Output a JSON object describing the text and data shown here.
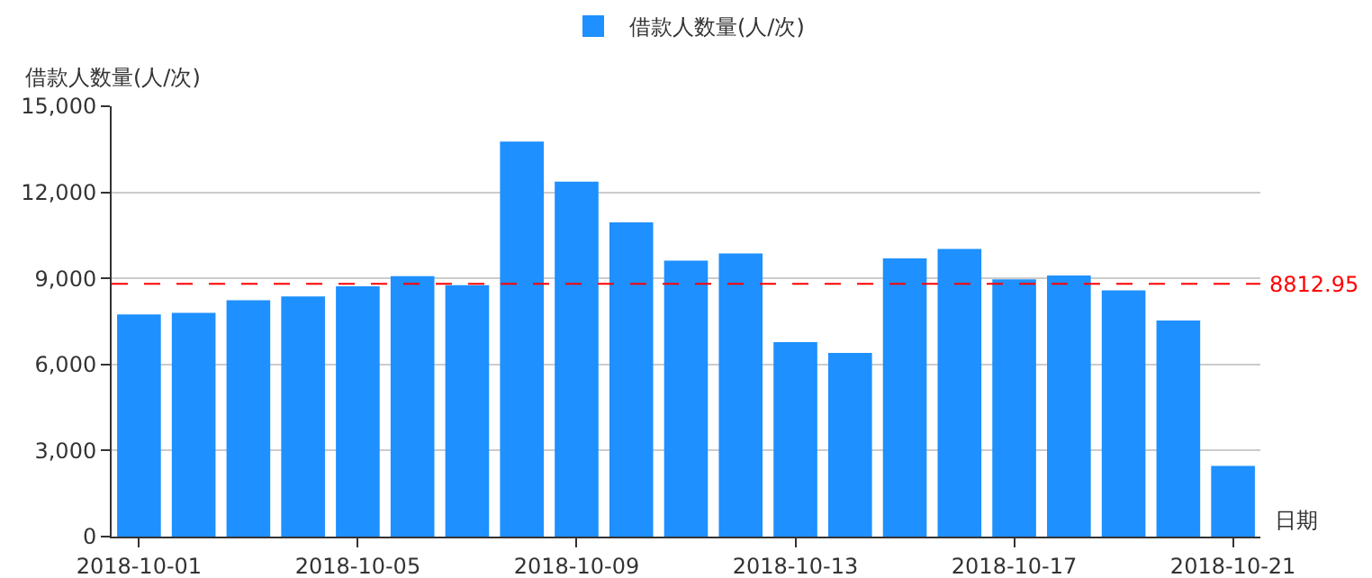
{
  "chart_data": {
    "type": "bar",
    "categories": [
      "2018-10-01",
      null,
      null,
      null,
      "2018-10-05",
      null,
      null,
      null,
      "2018-10-09",
      null,
      null,
      null,
      "2018-10-13",
      null,
      null,
      null,
      "2018-10-17",
      null,
      null,
      null,
      "2018-10-21"
    ],
    "series": [
      {
        "name": "借款人数量(人/次)",
        "color": "#1e90ff",
        "values": [
          7740,
          7800,
          8240,
          8370,
          8720,
          9080,
          8760,
          13770,
          12370,
          10950,
          9620,
          9870,
          6780,
          6400,
          9700,
          10030,
          8970,
          9100,
          8580,
          7530,
          2460
        ]
      }
    ],
    "ylabel": "借款人数量(人/次)",
    "xlabel": "日期",
    "ylim": [
      0,
      15000
    ],
    "yticks": [
      {
        "value": 0,
        "label": "0"
      },
      {
        "value": 3000,
        "label": "3,000"
      },
      {
        "value": 6000,
        "label": "6,000"
      },
      {
        "value": 9000,
        "label": "9,000"
      },
      {
        "value": 12000,
        "label": "12,000"
      },
      {
        "value": 15000,
        "label": "15,000"
      }
    ],
    "ref_lines": [
      {
        "axis": "y",
        "value": 8812.95,
        "label": "8812.95",
        "color": "#ff0000",
        "line_style": "dashed"
      }
    ],
    "grid": "y",
    "legend": "top"
  }
}
